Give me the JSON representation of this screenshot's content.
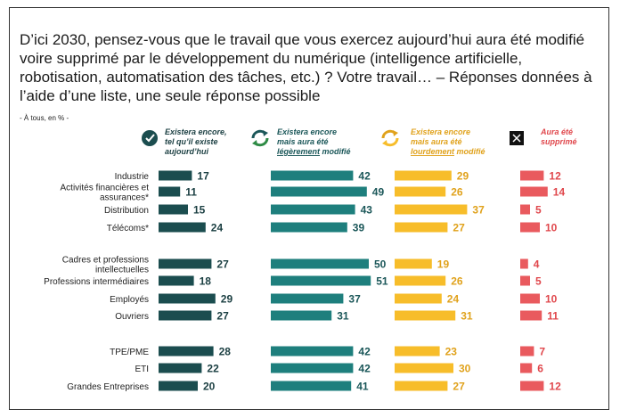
{
  "title": "D’ici 2030, pensez-vous que le travail que vous exercez aujourd’hui aura été modifié voire supprimé par le développement du numérique (intelligence artificielle, robotisation, automatisation des tâches, etc.) ? Votre travail… – Réponses données à l’aide d’une liste, une seule réponse possible",
  "unit_note": "- À tous, en % -",
  "chart_data": {
    "type": "bar",
    "title": "D’ici 2030, pensez-vous que le travail que vous exercez aujourd’hui aura été modifié voire supprimé par le développement du numérique ?",
    "unit": "%",
    "categories": [
      [
        "Industrie"
      ],
      [
        "Activités financières et",
        "assurances*"
      ],
      [
        "Distribution"
      ],
      [
        "Télécoms*"
      ],
      [
        "Cadres et professions",
        "intellectuelles"
      ],
      [
        "Professions intermédiaires"
      ],
      [
        "Employés"
      ],
      [
        "Ouvriers"
      ],
      [
        "TPE/PME"
      ],
      [
        "ETI"
      ],
      [
        "Grandes Entreprises"
      ]
    ],
    "groups": [
      [
        0,
        1,
        2,
        3
      ],
      [
        4,
        5,
        6,
        7
      ],
      [
        8,
        9,
        10
      ]
    ],
    "series": [
      {
        "name": [
          "Existera encore,",
          "tel qu’il existe",
          "aujourd’hui"
        ],
        "icon": "check-circle-icon",
        "color": "#1b4d4f",
        "text_color": "#1b3f42",
        "values": [
          17,
          11,
          15,
          24,
          27,
          18,
          29,
          27,
          28,
          22,
          20
        ]
      },
      {
        "name": [
          "Existera encore",
          "mais aura été",
          "légèrement modifié"
        ],
        "icon": "cycle-arrows-icon",
        "color": "#1e7f7d",
        "text_color": "#1b5759",
        "values": [
          42,
          49,
          43,
          39,
          50,
          51,
          37,
          31,
          42,
          42,
          41
        ]
      },
      {
        "name": [
          "Existera encore",
          "mais aura été",
          "lourdement modifié"
        ],
        "icon": "cycle-arrows-icon",
        "color": "#f7bd2a",
        "text_color": "#e0a21c",
        "values": [
          29,
          26,
          37,
          27,
          19,
          26,
          24,
          31,
          23,
          30,
          27
        ]
      },
      {
        "name": [
          "Aura été",
          "supprimé"
        ],
        "icon": "cross-box-icon",
        "color": "#e95a5e",
        "text_color": "#e0474c",
        "values": [
          12,
          14,
          5,
          10,
          4,
          5,
          10,
          11,
          7,
          6,
          12
        ]
      }
    ]
  }
}
